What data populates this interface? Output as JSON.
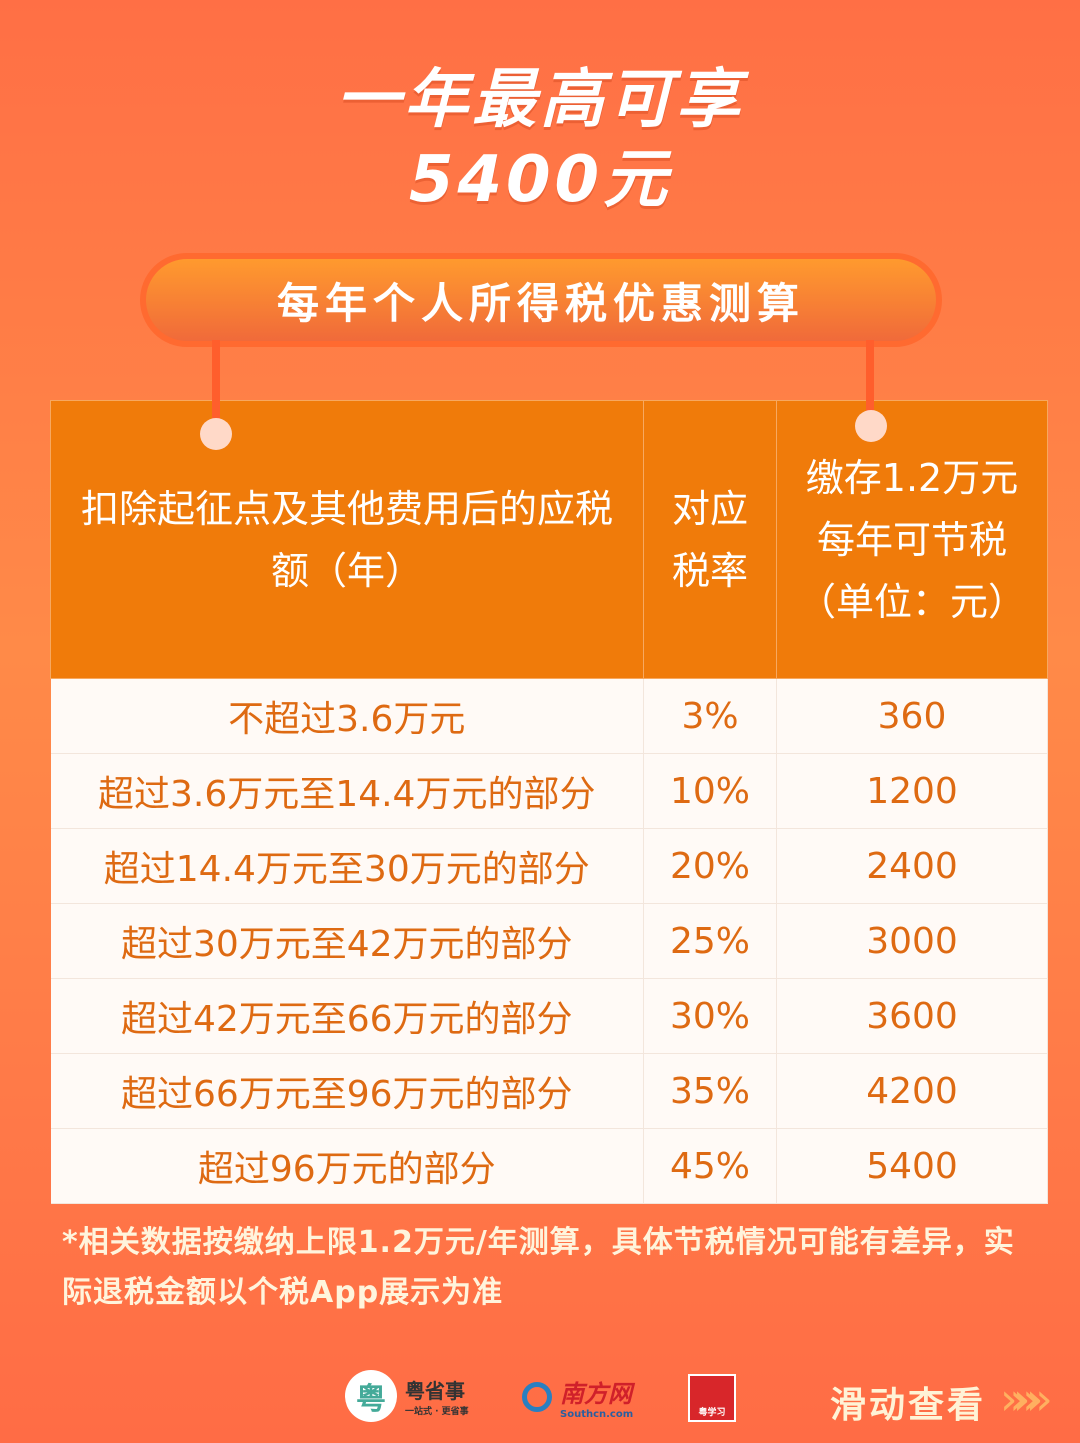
{
  "title": {
    "line1": "一年最高可享",
    "line2": "5400元"
  },
  "banner": "每年个人所得税优惠测算",
  "table": {
    "headers": [
      "扣除起征点及其他费用后的应税额（年）",
      "对应税率",
      "缴存1.2万元每年可节税（单位：元）"
    ],
    "rows": [
      [
        "不超过3.6万元",
        "3%",
        "360"
      ],
      [
        "超过3.6万元至14.4万元的部分",
        "10%",
        "1200"
      ],
      [
        "超过14.4万元至30万元的部分",
        "20%",
        "2400"
      ],
      [
        "超过30万元至42万元的部分",
        "25%",
        "3000"
      ],
      [
        "超过42万元至66万元的部分",
        "30%",
        "3600"
      ],
      [
        "超过66万元至96万元的部分",
        "35%",
        "4200"
      ],
      [
        "超过96万元的部分",
        "45%",
        "5400"
      ]
    ]
  },
  "note": "*相关数据按缴纳上限1.2万元/年测算，具体节税情况可能有差异，实际退税金额以个税App展示为准",
  "footer": {
    "logos": [
      {
        "name": "粤省事",
        "sub": "一站式 · 更省事"
      },
      {
        "name": "南方网",
        "sub": "Southcn.com"
      },
      {
        "name": "粤学习"
      }
    ],
    "swipe": "滑动查看",
    "chevrons": "»»»"
  },
  "colors": {
    "header": "#f07b0a",
    "row_text": "#de6a12",
    "background": "#ff7a48"
  }
}
